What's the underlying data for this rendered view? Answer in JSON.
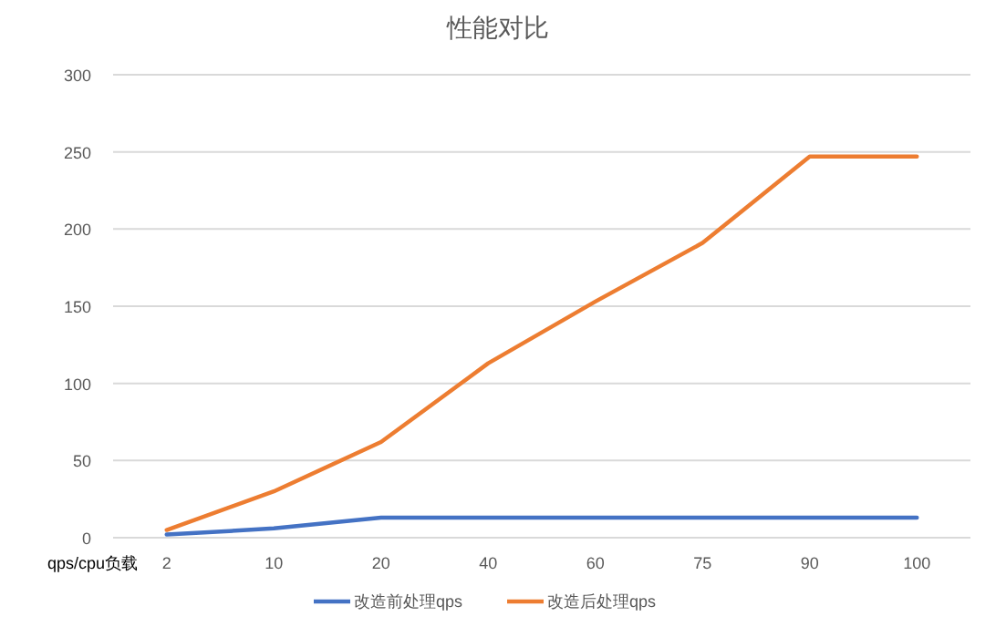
{
  "chart_data": {
    "type": "line",
    "title": "性能对比",
    "xlabel": "qps/cpu负载",
    "categories": [
      "2",
      "10",
      "20",
      "40",
      "60",
      "75",
      "90",
      "100"
    ],
    "series": [
      {
        "name": "改造前处理qps",
        "color": "#4472c4",
        "values": [
          2,
          6,
          13,
          13,
          13,
          13,
          13,
          13
        ]
      },
      {
        "name": "改造后处理qps",
        "color": "#ed7d31",
        "values": [
          5,
          30,
          62,
          113,
          153,
          191,
          247,
          247
        ]
      }
    ],
    "ylim": [
      0,
      300
    ],
    "yticks": [
      0,
      50,
      100,
      150,
      200,
      250,
      300
    ],
    "grid": "y",
    "legend": "bottom",
    "marker": "none",
    "line_style": "solid"
  }
}
